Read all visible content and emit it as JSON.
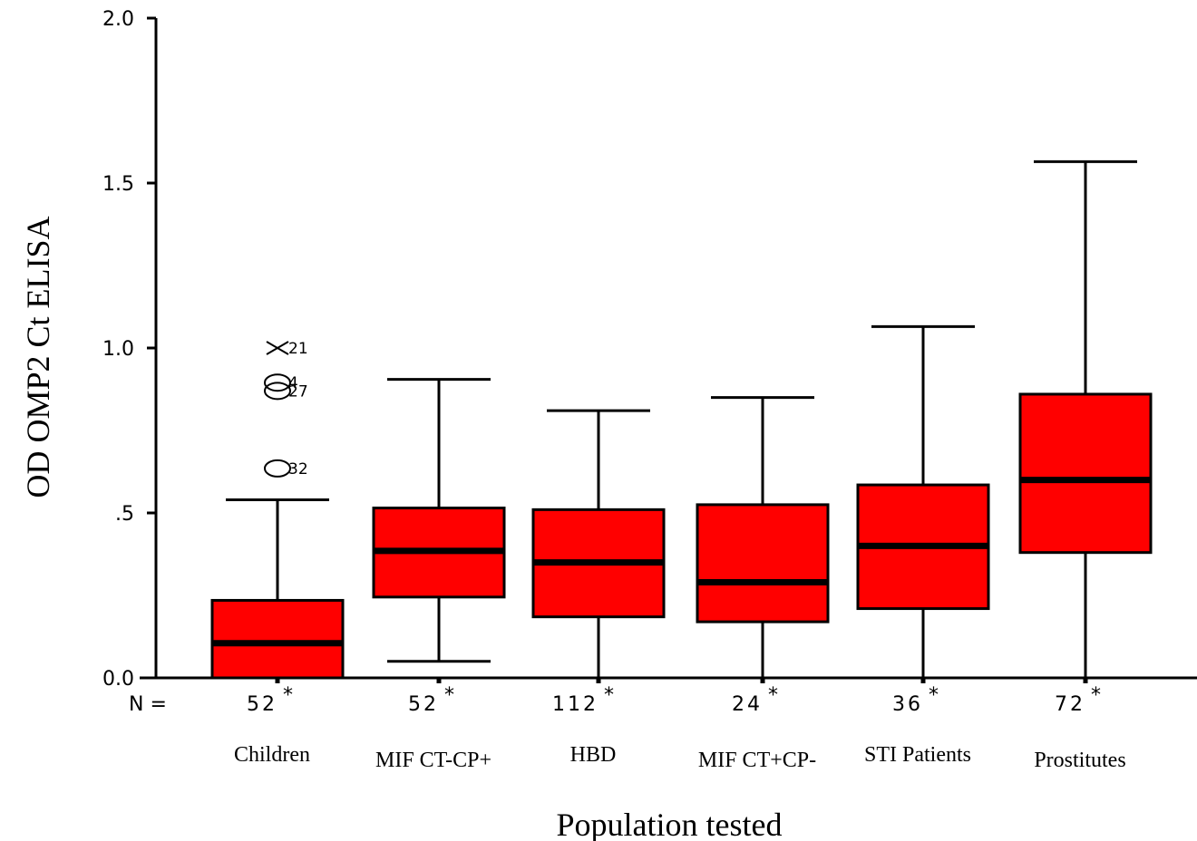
{
  "chart_data": {
    "type": "boxplot",
    "ylabel": "OD OMP2 Ct ELISA",
    "xlabel": "Population tested",
    "ylim": [
      0,
      2.0
    ],
    "yticks": [
      {
        "value": 0.0,
        "label": "0.0"
      },
      {
        "value": 0.5,
        "label": ".5"
      },
      {
        "value": 1.0,
        "label": "1.0"
      },
      {
        "value": 1.5,
        "label": "1.5"
      },
      {
        "value": 2.0,
        "label": "2.0"
      }
    ],
    "n_prefix": "N =",
    "groups": [
      {
        "label": "Children",
        "n": "52",
        "marker": "*",
        "whisker_low": 0.0,
        "q1": 0.0,
        "median": 0.105,
        "q3": 0.235,
        "whisker_high": 0.54,
        "outliers": [
          {
            "value": 1.0,
            "symbol": "cross",
            "label": "21"
          },
          {
            "value": 0.895,
            "symbol": "circle",
            "label": "4"
          },
          {
            "value": 0.87,
            "symbol": "circle",
            "label": "27"
          },
          {
            "value": 0.635,
            "symbol": "circle",
            "label": "32"
          }
        ]
      },
      {
        "label": "MIF CT-CP+",
        "n": "52",
        "marker": "*",
        "whisker_low": 0.05,
        "q1": 0.245,
        "median": 0.385,
        "q3": 0.515,
        "whisker_high": 0.905,
        "outliers": []
      },
      {
        "label": "HBD",
        "n": "112",
        "marker": "*",
        "whisker_low": 0.0,
        "q1": 0.185,
        "median": 0.35,
        "q3": 0.51,
        "whisker_high": 0.81,
        "outliers": []
      },
      {
        "label": "MIF CT+CP-",
        "n": "24",
        "marker": "*",
        "whisker_low": 0.0,
        "q1": 0.17,
        "median": 0.29,
        "q3": 0.525,
        "whisker_high": 0.85,
        "outliers": []
      },
      {
        "label": "STI Patients",
        "n": "36",
        "marker": "*",
        "whisker_low": 0.0,
        "q1": 0.21,
        "median": 0.4,
        "q3": 0.585,
        "whisker_high": 1.065,
        "outliers": []
      },
      {
        "label": "Prostitutes",
        "n": "72",
        "marker": "*",
        "whisker_low": 0.0,
        "q1": 0.38,
        "median": 0.6,
        "q3": 0.86,
        "whisker_high": 1.565,
        "outliers": []
      }
    ],
    "box_color": "#ff0000",
    "line_color": "#000000"
  }
}
